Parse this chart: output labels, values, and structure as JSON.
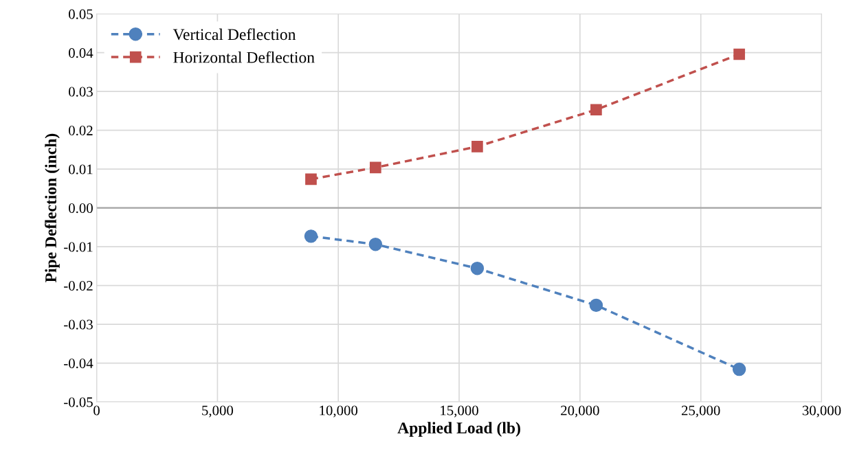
{
  "chart_data": {
    "type": "line",
    "xlabel": "Applied Load (lb)",
    "ylabel": "Pipe Deflection (inch)",
    "series": [
      {
        "name": "Vertical Deflection",
        "color": "#4f81bd",
        "x": [
          8870,
          11540,
          15750,
          20670,
          26590
        ],
        "values": [
          -0.0073,
          -0.0094,
          -0.0156,
          -0.0251,
          -0.0416
        ],
        "marker": "circle"
      },
      {
        "name": "Horizontal Deflection",
        "color": "#c0504d",
        "x": [
          8870,
          11540,
          15750,
          20670,
          26590
        ],
        "values": [
          0.0074,
          0.0104,
          0.0158,
          0.0253,
          0.0396
        ],
        "marker": "square"
      }
    ],
    "line_style": "dashed",
    "xlim": [
      0,
      30000
    ],
    "xticks": [
      0,
      {
        "value": 5000,
        "label": "5,000"
      },
      {
        "value": 10000,
        "label": "10,000"
      },
      {
        "value": 15000,
        "label": "15,000"
      },
      {
        "value": 20000,
        "label": "20,000"
      },
      {
        "value": 25000,
        "label": "25,000"
      },
      {
        "value": 30000,
        "label": "30,000"
      }
    ],
    "ylim": [
      -0.05,
      0.05
    ],
    "yticks": [
      {
        "value": -0.05,
        "label": "-0.05"
      },
      {
        "value": -0.04,
        "label": "-0.04"
      },
      {
        "value": -0.03,
        "label": "-0.03"
      },
      {
        "value": -0.02,
        "label": "-0.02"
      },
      {
        "value": -0.01,
        "label": "-0.01"
      },
      {
        "value": 0,
        "label": "0.00"
      },
      0.01,
      0.02,
      0.03,
      0.04,
      0.05
    ],
    "ref_lines": [
      {
        "axis": "y",
        "value": 0,
        "color": "#a6a6a6"
      }
    ],
    "grid": true,
    "legend": "top left"
  }
}
